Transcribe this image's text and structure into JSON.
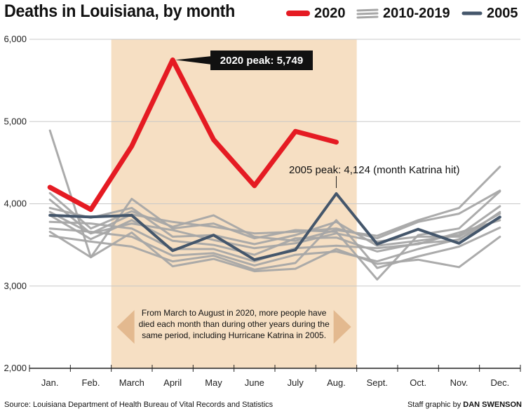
{
  "header": {
    "title": "Deaths in Louisiana, by month"
  },
  "legend": [
    {
      "label": "2020",
      "color": "#e51b23",
      "style": "thick"
    },
    {
      "label": "2010-2019",
      "color": "#a6a6a6",
      "style": "multi"
    },
    {
      "label": "2005",
      "color": "#44566b",
      "style": "medium"
    }
  ],
  "footer": {
    "source": "Source: Louisiana Department of Health Bureau of Vital Records and Statistics",
    "credit_prefix": "Staff graphic by",
    "credit_name": "DAN SWENSON"
  },
  "chart_data": {
    "type": "line",
    "title": "Deaths in Louisiana, by month",
    "xlabel": "",
    "ylabel": "",
    "ylim": [
      2000,
      6000
    ],
    "yticks": [
      2000,
      3000,
      4000,
      5000,
      6000
    ],
    "ytick_labels": [
      "2,000",
      "3,000",
      "4,000",
      "5,000",
      "6,000"
    ],
    "categories": [
      "Jan.",
      "Feb.",
      "March",
      "April",
      "May",
      "June",
      "July",
      "Aug.",
      "Sept.",
      "Oct.",
      "Nov.",
      "Dec."
    ],
    "grid": true,
    "series": [
      {
        "name": "2020",
        "color": "#e51b23",
        "values": [
          4200,
          3930,
          4700,
          5749,
          4780,
          4220,
          4880,
          4750,
          null,
          null,
          null,
          null
        ]
      },
      {
        "name": "2005",
        "color": "#44566b",
        "values": [
          3860,
          3840,
          3860,
          3430,
          3620,
          3320,
          3440,
          4124,
          3510,
          3690,
          3520,
          3840
        ]
      },
      {
        "group": "2010-2019",
        "color": "#a6a6a6",
        "values": [
          4890,
          3350,
          4060,
          3700,
          3760,
          3580,
          3680,
          3660,
          3080,
          3620,
          3700,
          4150
        ]
      },
      {
        "group": "2010-2019",
        "color": "#a6a6a6",
        "values": [
          4130,
          3700,
          3910,
          3720,
          3860,
          3600,
          3550,
          3680,
          3610,
          3800,
          3950,
          4450
        ]
      },
      {
        "group": "2010-2019",
        "color": "#a6a6a6",
        "values": [
          4050,
          3640,
          3870,
          3780,
          3720,
          3640,
          3660,
          3700,
          3580,
          3780,
          3880,
          4160
        ]
      },
      {
        "group": "2010-2019",
        "color": "#a6a6a6",
        "values": [
          3950,
          3830,
          3950,
          3600,
          3620,
          3510,
          3620,
          3780,
          3490,
          3550,
          3620,
          3970
        ]
      },
      {
        "group": "2010-2019",
        "color": "#a6a6a6",
        "values": [
          3860,
          3570,
          3800,
          3550,
          3500,
          3380,
          3580,
          3590,
          3420,
          3520,
          3560,
          3900
        ]
      },
      {
        "group": "2010-2019",
        "color": "#a6a6a6",
        "values": [
          3780,
          3760,
          3700,
          3450,
          3450,
          3300,
          3460,
          3490,
          3460,
          3510,
          3650,
          3800
        ]
      },
      {
        "group": "2010-2019",
        "color": "#a6a6a6",
        "values": [
          3700,
          3660,
          3600,
          3370,
          3400,
          3250,
          3380,
          3420,
          3300,
          3450,
          3570,
          3830
        ]
      },
      {
        "group": "2010-2019",
        "color": "#a6a6a6",
        "values": [
          3610,
          3540,
          3480,
          3300,
          3370,
          3200,
          3280,
          3800,
          3220,
          3360,
          3480,
          3710
        ]
      },
      {
        "group": "2010-2019",
        "color": "#a6a6a6",
        "values": [
          3660,
          3350,
          3650,
          3240,
          3330,
          3180,
          3210,
          3450,
          3270,
          3320,
          3230,
          3600
        ]
      },
      {
        "group": "2010-2019",
        "color": "#a6a6a6",
        "values": [
          3900,
          3640,
          3760,
          3680,
          3560,
          3460,
          3520,
          3640,
          3540,
          3600,
          3600,
          3880
        ]
      }
    ],
    "annotations": {
      "peak_2020": "2020 peak: 5,749",
      "peak_2005": "2005 peak: 4,124 (month Katrina hit)",
      "shaded_period": "March to August 2020",
      "shaded_lines": [
        "From March to August in 2020, more people have",
        "died each month than during other years during the",
        "same period, including Hurricane Katrina in 2005."
      ]
    }
  }
}
